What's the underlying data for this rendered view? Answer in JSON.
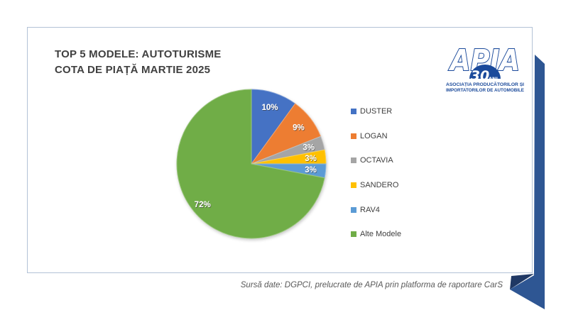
{
  "slide": {
    "title_line1": "TOP 5 MODELE: AUTOTURISME",
    "title_line2": "COTA DE PIAȚĂ MARTIE 2025"
  },
  "logo": {
    "acronym": "APIA",
    "badge_number": "30",
    "badge_suffix": "ANI",
    "org_line1": "ASOCIAȚIA PRODUCĂTORILOR ȘI",
    "org_line2": "IMPORTATORILOR DE AUTOMOBILE",
    "color": "#1B4A9B"
  },
  "chart_data": {
    "type": "pie",
    "title": "TOP 5 MODELE: AUTOTURISME — COTA DE PIAȚĂ MARTIE 2025",
    "categories": [
      "DUSTER",
      "LOGAN",
      "OCTAVIA",
      "SANDERO",
      "RAV4",
      "Alte Modele"
    ],
    "values": [
      10,
      9,
      3,
      3,
      3,
      72
    ],
    "labels": [
      "10%",
      "9%",
      "3%",
      "3%",
      "3%",
      "72%"
    ],
    "colors": [
      "#4472C4",
      "#ED7D31",
      "#A5A5A5",
      "#FFC000",
      "#5B9BD5",
      "#70AD47"
    ],
    "start_angle_deg": 0,
    "direction": "clockwise",
    "legend_position": "right",
    "label_color": "#FFFFFF"
  },
  "footer": {
    "source": "Sursă date: DGPCI, prelucrate de APIA prin platforma de raportare CarS"
  },
  "decor": {
    "ribbon_color": "#2E5693",
    "ribbon_fold_color": "#1F3864",
    "card_border_color": "#B3C2D6"
  }
}
